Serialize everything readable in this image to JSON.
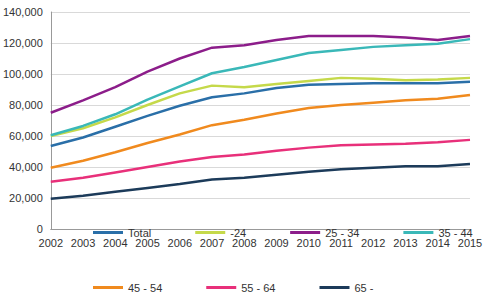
{
  "chart_data": {
    "type": "line",
    "categories": [
      "2002",
      "2003",
      "2004",
      "2005",
      "2006",
      "2007",
      "2008",
      "2009",
      "2010",
      "2011",
      "2012",
      "2013",
      "2014",
      "2015"
    ],
    "series": [
      {
        "name": "Total",
        "color": "#2a6fa8",
        "values": [
          53500,
          59000,
          66000,
          73000,
          79500,
          85000,
          87500,
          91000,
          93000,
          93500,
          94000,
          94000,
          94000,
          95000
        ]
      },
      {
        "name": "-24",
        "color": "#c5d94a",
        "values": [
          60000,
          65000,
          72000,
          80000,
          87500,
          92500,
          91500,
          93500,
          95500,
          97500,
          97000,
          96000,
          96500,
          97500
        ]
      },
      {
        "name": "25 - 34",
        "color": "#8c1d8a",
        "values": [
          75000,
          83000,
          91500,
          101500,
          110000,
          117000,
          118500,
          122000,
          124500,
          124500,
          124500,
          123500,
          122000,
          124500
        ]
      },
      {
        "name": "35 - 44",
        "color": "#3ab8b8",
        "values": [
          60500,
          66500,
          74000,
          83500,
          92000,
          100500,
          104500,
          109000,
          113500,
          115500,
          117500,
          118500,
          119500,
          122500
        ]
      },
      {
        "name": "45 - 54",
        "color": "#f08a1e",
        "values": [
          39500,
          44000,
          49500,
          55500,
          61000,
          67000,
          70500,
          74500,
          78000,
          80000,
          81500,
          83000,
          84000,
          86500
        ]
      },
      {
        "name": "55 - 64",
        "color": "#e8307a",
        "values": [
          30500,
          33000,
          36500,
          40000,
          43500,
          46500,
          48000,
          50500,
          52500,
          54000,
          54500,
          55000,
          56000,
          57500
        ]
      },
      {
        "name": "65 -",
        "color": "#1c3b5a",
        "values": [
          19500,
          21500,
          24000,
          26500,
          29000,
          32000,
          33000,
          35000,
          37000,
          38500,
          39500,
          40500,
          40500,
          42000
        ]
      }
    ],
    "ylim": [
      0,
      140000
    ],
    "yticks": [
      0,
      20000,
      40000,
      60000,
      80000,
      100000,
      120000,
      140000
    ],
    "grid": true,
    "legend": "bottom"
  }
}
